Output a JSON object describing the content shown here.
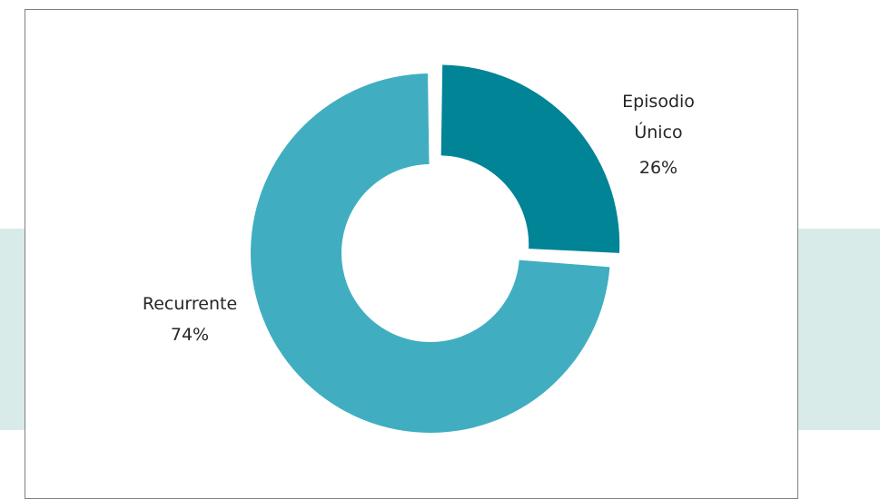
{
  "colors": {
    "background_band": "#d9ebe8",
    "episodio_unico": "#008496",
    "recurrente": "#40aec0",
    "frame_border": "#808080",
    "label_text": "#262626"
  },
  "chart_data": {
    "type": "pie",
    "variant": "donut",
    "title": "",
    "slices": [
      {
        "name": "Episodio Único",
        "label_lines": [
          "Episodio",
          "Único"
        ],
        "value": 26,
        "value_label": "26%",
        "exploded": true
      },
      {
        "name": "Recurrente",
        "label_lines": [
          "Recurrente"
        ],
        "value": 74,
        "value_label": "74%",
        "exploded": false
      }
    ],
    "legend": "none",
    "data_labels": "outside"
  }
}
